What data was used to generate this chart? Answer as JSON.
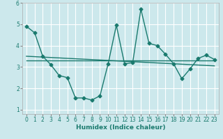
{
  "xlabel": "Humidex (Indice chaleur)",
  "background_color": "#cce8ec",
  "grid_color": "#ffffff",
  "line_color": "#1a7a6e",
  "xlim": [
    -0.5,
    23.5
  ],
  "ylim": [
    0.8,
    6.0
  ],
  "xticks": [
    0,
    1,
    2,
    3,
    4,
    5,
    6,
    7,
    8,
    9,
    10,
    11,
    12,
    13,
    14,
    15,
    16,
    17,
    18,
    19,
    20,
    21,
    22,
    23
  ],
  "yticks": [
    1,
    2,
    3,
    4,
    5,
    6
  ],
  "line1_x": [
    0,
    1,
    2,
    3,
    4,
    5,
    6,
    7,
    8,
    9,
    10,
    11,
    12,
    13,
    14,
    15,
    16,
    17,
    18,
    19,
    20,
    21,
    22,
    23
  ],
  "line1_y": [
    4.9,
    4.6,
    3.5,
    3.1,
    2.6,
    2.5,
    1.55,
    1.55,
    1.45,
    1.65,
    3.15,
    4.95,
    3.15,
    3.2,
    5.7,
    4.1,
    4.0,
    3.6,
    3.15,
    2.45,
    2.9,
    3.4,
    3.55,
    3.35
  ],
  "line2_x": [
    0,
    23
  ],
  "line2_y": [
    3.5,
    3.05
  ],
  "line3_x": [
    0,
    23
  ],
  "line3_y": [
    3.3,
    3.3
  ],
  "marker_size": 2.5,
  "line_width": 1.0,
  "axis_fontsize": 6.5,
  "tick_fontsize": 5.5
}
